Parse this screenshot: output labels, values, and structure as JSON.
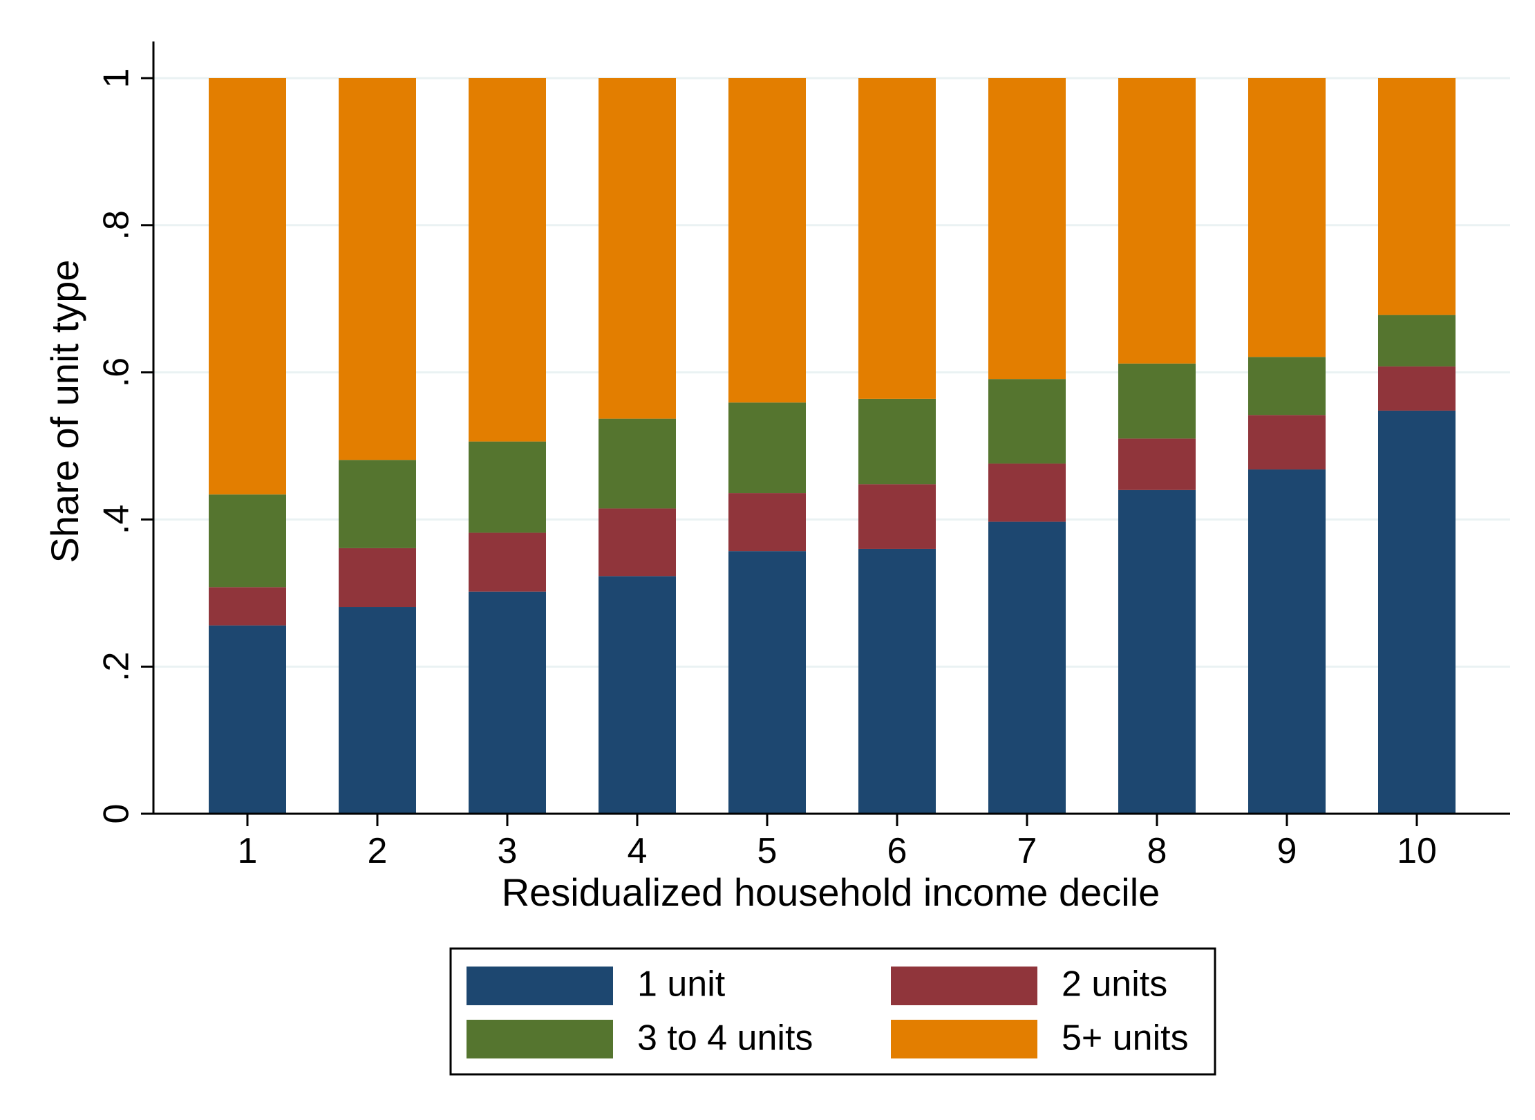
{
  "chart_data": {
    "type": "bar",
    "stacked": true,
    "title": "",
    "xlabel": "Residualized household income decile",
    "ylabel": "Share of unit type",
    "categories": [
      "1",
      "2",
      "3",
      "4",
      "5",
      "6",
      "7",
      "8",
      "9",
      "10"
    ],
    "ylim": [
      0,
      1
    ],
    "yticks": [
      {
        "value": 0,
        "label": "0"
      },
      {
        "value": 0.2,
        "label": ".2"
      },
      {
        "value": 0.4,
        "label": ".4"
      },
      {
        "value": 0.6,
        "label": ".6"
      },
      {
        "value": 0.8,
        "label": ".8"
      },
      {
        "value": 1,
        "label": "1"
      }
    ],
    "grid": true,
    "legend_position": "bottom",
    "series": [
      {
        "name": "1 unit",
        "color": "#1D4770",
        "values": [
          0.256,
          0.281,
          0.302,
          0.323,
          0.357,
          0.36,
          0.397,
          0.44,
          0.468,
          0.548
        ]
      },
      {
        "name": "2 units",
        "color": "#90353B",
        "values": [
          0.052,
          0.08,
          0.08,
          0.092,
          0.079,
          0.088,
          0.079,
          0.07,
          0.074,
          0.06
        ]
      },
      {
        "name": "3 to 4 units",
        "color": "#55752F",
        "values": [
          0.126,
          0.12,
          0.124,
          0.122,
          0.123,
          0.116,
          0.115,
          0.102,
          0.079,
          0.07
        ]
      },
      {
        "name": "5+ units",
        "color": "#E37E00",
        "values": [
          0.566,
          0.519,
          0.494,
          0.463,
          0.441,
          0.436,
          0.409,
          0.388,
          0.379,
          0.322
        ]
      }
    ]
  }
}
